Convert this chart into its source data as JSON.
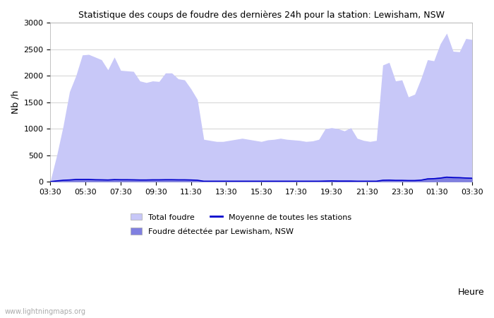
{
  "title": "Statistique des coups de foudre des dernières 24h pour la station: Lewisham, NSW",
  "ylabel": "Nb /h",
  "xlabel": "Heure",
  "watermark": "www.lightningmaps.org",
  "x_ticks": [
    "03:30",
    "05:30",
    "07:30",
    "09:30",
    "11:30",
    "13:30",
    "15:30",
    "17:30",
    "19:30",
    "21:30",
    "23:30",
    "01:30",
    "03:30"
  ],
  "ylim": [
    0,
    3000
  ],
  "yticks": [
    0,
    500,
    1000,
    1500,
    2000,
    2500,
    3000
  ],
  "total_foudre_color": "#c8c8f8",
  "detected_color": "#8080e0",
  "mean_color": "#0000cc",
  "background": "#ffffff",
  "grid_color": "#cccccc",
  "legend_total": "Total foudre",
  "legend_detected": "Foudre détectée par Lewisham, NSW",
  "legend_mean": "Moyenne de toutes les stations",
  "total_foudre": [
    20,
    500,
    1050,
    1700,
    2000,
    2390,
    2400,
    2350,
    2300,
    2110,
    2350,
    2100,
    2090,
    2080,
    1900,
    1870,
    1900,
    1890,
    2050,
    2050,
    1940,
    1920,
    1750,
    1550,
    800,
    780,
    760,
    760,
    780,
    800,
    820,
    800,
    780,
    760,
    790,
    800,
    820,
    800,
    790,
    780,
    760,
    770,
    800,
    1000,
    1020,
    1000,
    960,
    1020,
    820,
    780,
    760,
    780,
    2200,
    2250,
    1900,
    1920,
    1600,
    1650,
    1950,
    2300,
    2280,
    2600,
    2800,
    2460,
    2450,
    2700,
    2680
  ],
  "detected_foudre": [
    5,
    20,
    35,
    40,
    50,
    55,
    55,
    50,
    45,
    40,
    50,
    45,
    45,
    45,
    40,
    40,
    45,
    45,
    50,
    50,
    45,
    45,
    40,
    35,
    15,
    15,
    15,
    15,
    15,
    15,
    15,
    15,
    15,
    15,
    15,
    15,
    15,
    15,
    15,
    15,
    15,
    15,
    15,
    20,
    25,
    20,
    20,
    20,
    15,
    15,
    15,
    15,
    40,
    45,
    35,
    35,
    30,
    30,
    45,
    70,
    75,
    90,
    105,
    100,
    95,
    85,
    80
  ],
  "mean_foudre": [
    5,
    18,
    30,
    35,
    45,
    45,
    45,
    40,
    38,
    35,
    42,
    40,
    40,
    38,
    35,
    35,
    38,
    38,
    40,
    40,
    38,
    38,
    35,
    30,
    12,
    12,
    12,
    12,
    12,
    12,
    12,
    12,
    12,
    12,
    12,
    12,
    12,
    12,
    12,
    12,
    12,
    12,
    12,
    15,
    18,
    15,
    15,
    15,
    12,
    12,
    12,
    12,
    30,
    32,
    28,
    28,
    25,
    25,
    32,
    55,
    60,
    70,
    88,
    80,
    78,
    72,
    68
  ]
}
